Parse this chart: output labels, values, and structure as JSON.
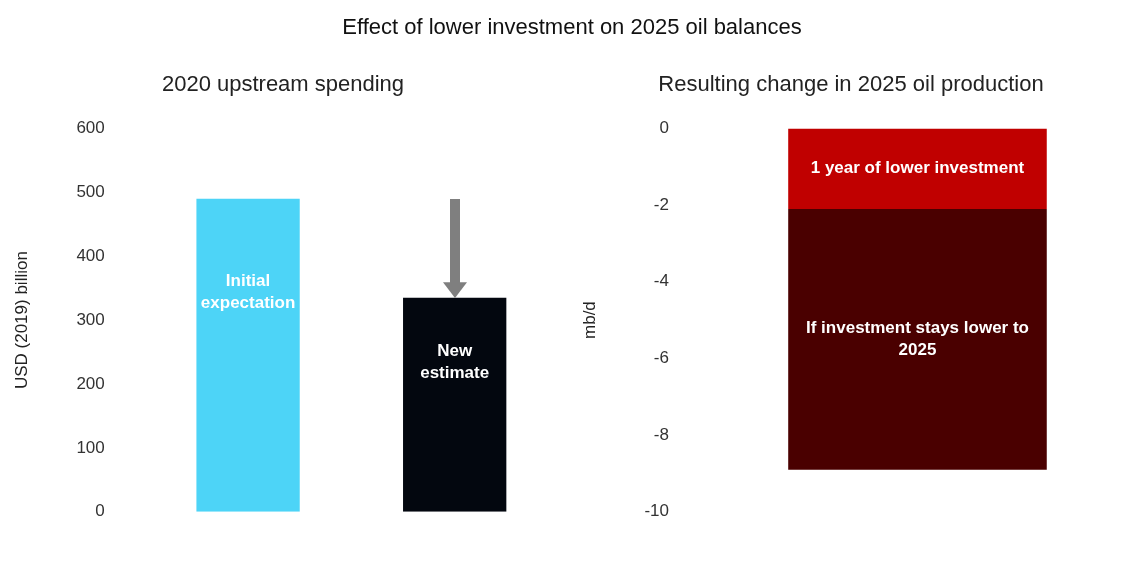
{
  "chart_data": [
    {
      "type": "bar",
      "title": "Effect of lower investment on 2025 oil balances",
      "subtitle": "2020 upstream spending",
      "ylabel": "USD (2019) billion",
      "categories": [
        "Initial expectation",
        "New estimate"
      ],
      "colors": [
        "#4dd4f7",
        "#03070f"
      ],
      "values": [
        490,
        335
      ],
      "ylim": [
        0,
        600
      ],
      "yticks": [
        0,
        100,
        200,
        300,
        400,
        500,
        600
      ],
      "grid": false,
      "legend": false
    },
    {
      "type": "bar",
      "title": "Resulting change in 2025 oil production",
      "ylabel": "mb/d",
      "categories": [
        null
      ],
      "stacked": true,
      "series": [
        {
          "name": "1 year of lower investment",
          "color": "#c00000",
          "values": [
            -2.1
          ]
        },
        {
          "name": "If investment stays lower to 2025",
          "color": "#4a0000",
          "values": [
            -6.8
          ]
        }
      ],
      "ylim": [
        -10,
        0
      ],
      "yticks": [
        0,
        -2,
        -4,
        -6,
        -8,
        -10
      ],
      "grid": false,
      "legend": false
    }
  ]
}
